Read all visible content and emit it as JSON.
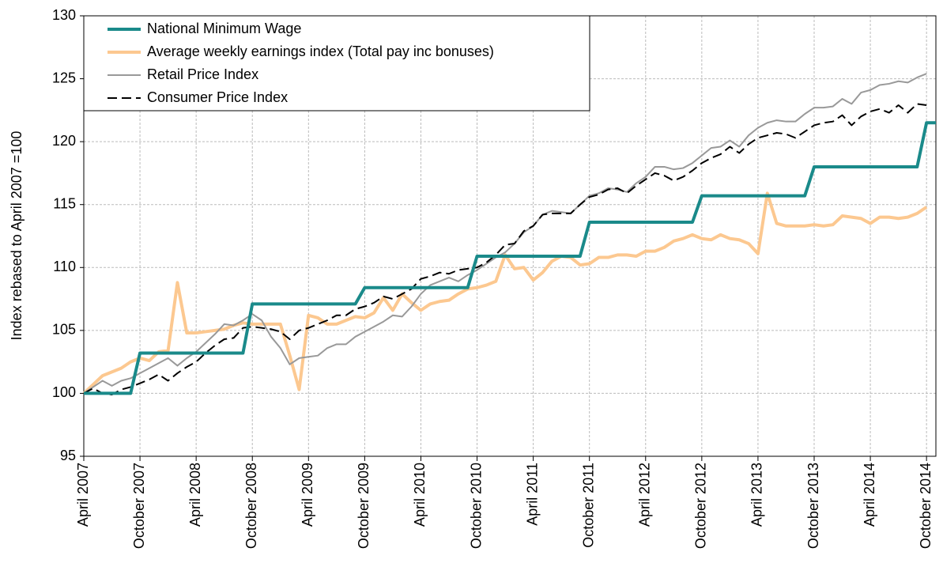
{
  "chart_data": {
    "type": "line",
    "ylabel": "Index rebased to April 2007 =100",
    "categories": [
      "April 2007",
      null,
      null,
      null,
      null,
      null,
      "October 2007",
      null,
      null,
      null,
      null,
      null,
      "April 2008",
      null,
      null,
      null,
      null,
      null,
      "October 2008",
      null,
      null,
      null,
      null,
      null,
      "April 2009",
      null,
      null,
      null,
      null,
      null,
      "October 2009",
      null,
      null,
      null,
      null,
      null,
      "April 2010",
      null,
      null,
      null,
      null,
      null,
      "October 2010",
      null,
      null,
      null,
      null,
      null,
      "April 2011",
      null,
      null,
      null,
      null,
      null,
      "October 2011",
      null,
      null,
      null,
      null,
      null,
      "April 2012",
      null,
      null,
      null,
      null,
      null,
      "October 2012",
      null,
      null,
      null,
      null,
      null,
      "April 2013",
      null,
      null,
      null,
      null,
      null,
      "October 2013",
      null,
      null,
      null,
      null,
      null,
      "April 2014",
      null,
      null,
      null,
      null,
      null,
      "October 2014",
      null
    ],
    "series": [
      {
        "name": "National Minimum Wage",
        "color": "#1a8a8a",
        "width": 4,
        "style": "solid",
        "values": [
          100,
          100,
          100,
          100,
          100,
          100,
          103.2,
          103.2,
          103.2,
          103.2,
          103.2,
          103.2,
          103.2,
          103.2,
          103.2,
          103.2,
          103.2,
          103.2,
          107.1,
          107.1,
          107.1,
          107.1,
          107.1,
          107.1,
          107.1,
          107.1,
          107.1,
          107.1,
          107.1,
          107.1,
          108.4,
          108.4,
          108.4,
          108.4,
          108.4,
          108.4,
          108.4,
          108.4,
          108.4,
          108.4,
          108.4,
          108.4,
          110.9,
          110.9,
          110.9,
          110.9,
          110.9,
          110.9,
          110.9,
          110.9,
          110.9,
          110.9,
          110.9,
          110.9,
          113.6,
          113.6,
          113.6,
          113.6,
          113.6,
          113.6,
          113.6,
          113.6,
          113.6,
          113.6,
          113.6,
          113.6,
          115.7,
          115.7,
          115.7,
          115.7,
          115.7,
          115.7,
          115.7,
          115.7,
          115.7,
          115.7,
          115.7,
          115.7,
          118,
          118,
          118,
          118,
          118,
          118,
          118,
          118,
          118,
          118,
          118,
          118,
          121.5,
          121.5
        ]
      },
      {
        "name": "Average weekly earnings index (Total pay inc bonuses)",
        "color": "#fcc890",
        "width": 4,
        "style": "solid",
        "values": [
          100,
          100.7,
          101.4,
          101.7,
          102,
          102.5,
          102.8,
          102.6,
          103.3,
          103.4,
          108.8,
          104.8,
          104.8,
          104.9,
          105,
          105.1,
          105.4,
          105.6,
          105.5,
          105.5,
          105.5,
          105.5,
          103,
          100.3,
          106.2,
          106,
          105.5,
          105.5,
          105.8,
          106.1,
          106,
          106.4,
          107.6,
          106.6,
          107.9,
          107.2,
          106.6,
          107.1,
          107.3,
          107.4,
          107.9,
          108.3,
          108.4,
          108.6,
          108.9,
          111,
          109.9,
          110,
          109,
          109.6,
          110.5,
          110.9,
          110.8,
          110.2,
          110.3,
          110.8,
          110.8,
          111,
          111,
          110.9,
          111.3,
          111.3,
          111.6,
          112.1,
          112.3,
          112.6,
          112.3,
          112.2,
          112.6,
          112.3,
          112.2,
          111.9,
          111.1,
          115.9,
          113.5,
          113.3,
          113.3,
          113.3,
          113.4,
          113.3,
          113.4,
          114.1,
          114,
          113.9,
          113.5,
          114,
          114,
          113.9,
          114,
          114.3,
          114.8,
          null
        ]
      },
      {
        "name": "Retail Price Index",
        "color": "#999999",
        "width": 2,
        "style": "solid",
        "values": [
          100,
          100.5,
          101,
          100.6,
          101,
          101.2,
          101.6,
          102,
          102.4,
          102.8,
          102.2,
          102.8,
          103.3,
          104,
          104.7,
          105.5,
          105.4,
          105.8,
          106.3,
          105.8,
          104.5,
          103.6,
          102.3,
          102.8,
          102.9,
          103,
          103.6,
          103.9,
          103.9,
          104.5,
          104.9,
          105.3,
          105.7,
          106.2,
          106.1,
          106.9,
          107.9,
          108.6,
          108.9,
          109.2,
          108.9,
          109.4,
          109.8,
          110.3,
          110.8,
          111.2,
          111.9,
          112.8,
          113.3,
          114.2,
          114.5,
          114.4,
          114.3,
          115,
          115.7,
          115.9,
          116.3,
          116.2,
          116,
          116.7,
          117.2,
          118,
          118,
          117.8,
          117.9,
          118.3,
          118.9,
          119.5,
          119.6,
          120.1,
          119.6,
          120.5,
          121.1,
          121.5,
          121.7,
          121.6,
          121.6,
          122.2,
          122.7,
          122.7,
          122.8,
          123.4,
          123,
          123.9,
          124.1,
          124.5,
          124.6,
          124.8,
          124.7,
          125.1,
          125.4,
          null
        ]
      },
      {
        "name": "Consumer Price Index",
        "color": "#000000",
        "width": 2,
        "style": "dashed",
        "values": [
          100,
          100.4,
          100,
          99.9,
          100.3,
          100.5,
          100.8,
          101.1,
          101.5,
          101,
          101.6,
          102.1,
          102.5,
          103.2,
          103.8,
          104.3,
          104.4,
          105.2,
          105.3,
          105.2,
          105.1,
          104.9,
          104.3,
          105,
          105.2,
          105.5,
          105.8,
          106.2,
          106.2,
          106.7,
          106.9,
          107.2,
          107.7,
          107.5,
          107.9,
          108.3,
          109.1,
          109.3,
          109.6,
          109.5,
          109.8,
          109.9,
          110,
          110.4,
          111,
          111.8,
          111.9,
          112.9,
          113.3,
          114.2,
          114.3,
          114.3,
          114.3,
          115,
          115.6,
          115.8,
          116.2,
          116.3,
          115.9,
          116.5,
          117,
          117.5,
          117.3,
          116.9,
          117.2,
          117.7,
          118.3,
          118.7,
          119,
          119.6,
          119.1,
          119.8,
          120.3,
          120.5,
          120.7,
          120.6,
          120.3,
          120.8,
          121.3,
          121.5,
          121.6,
          122.1,
          121.3,
          122,
          122.4,
          122.6,
          122.3,
          122.9,
          122.3,
          123,
          122.9,
          null
        ]
      }
    ],
    "ylim": [
      95,
      130
    ],
    "yticks": [
      95,
      100,
      105,
      110,
      115,
      120,
      125,
      130
    ],
    "grid": true,
    "legend": "upper left"
  }
}
